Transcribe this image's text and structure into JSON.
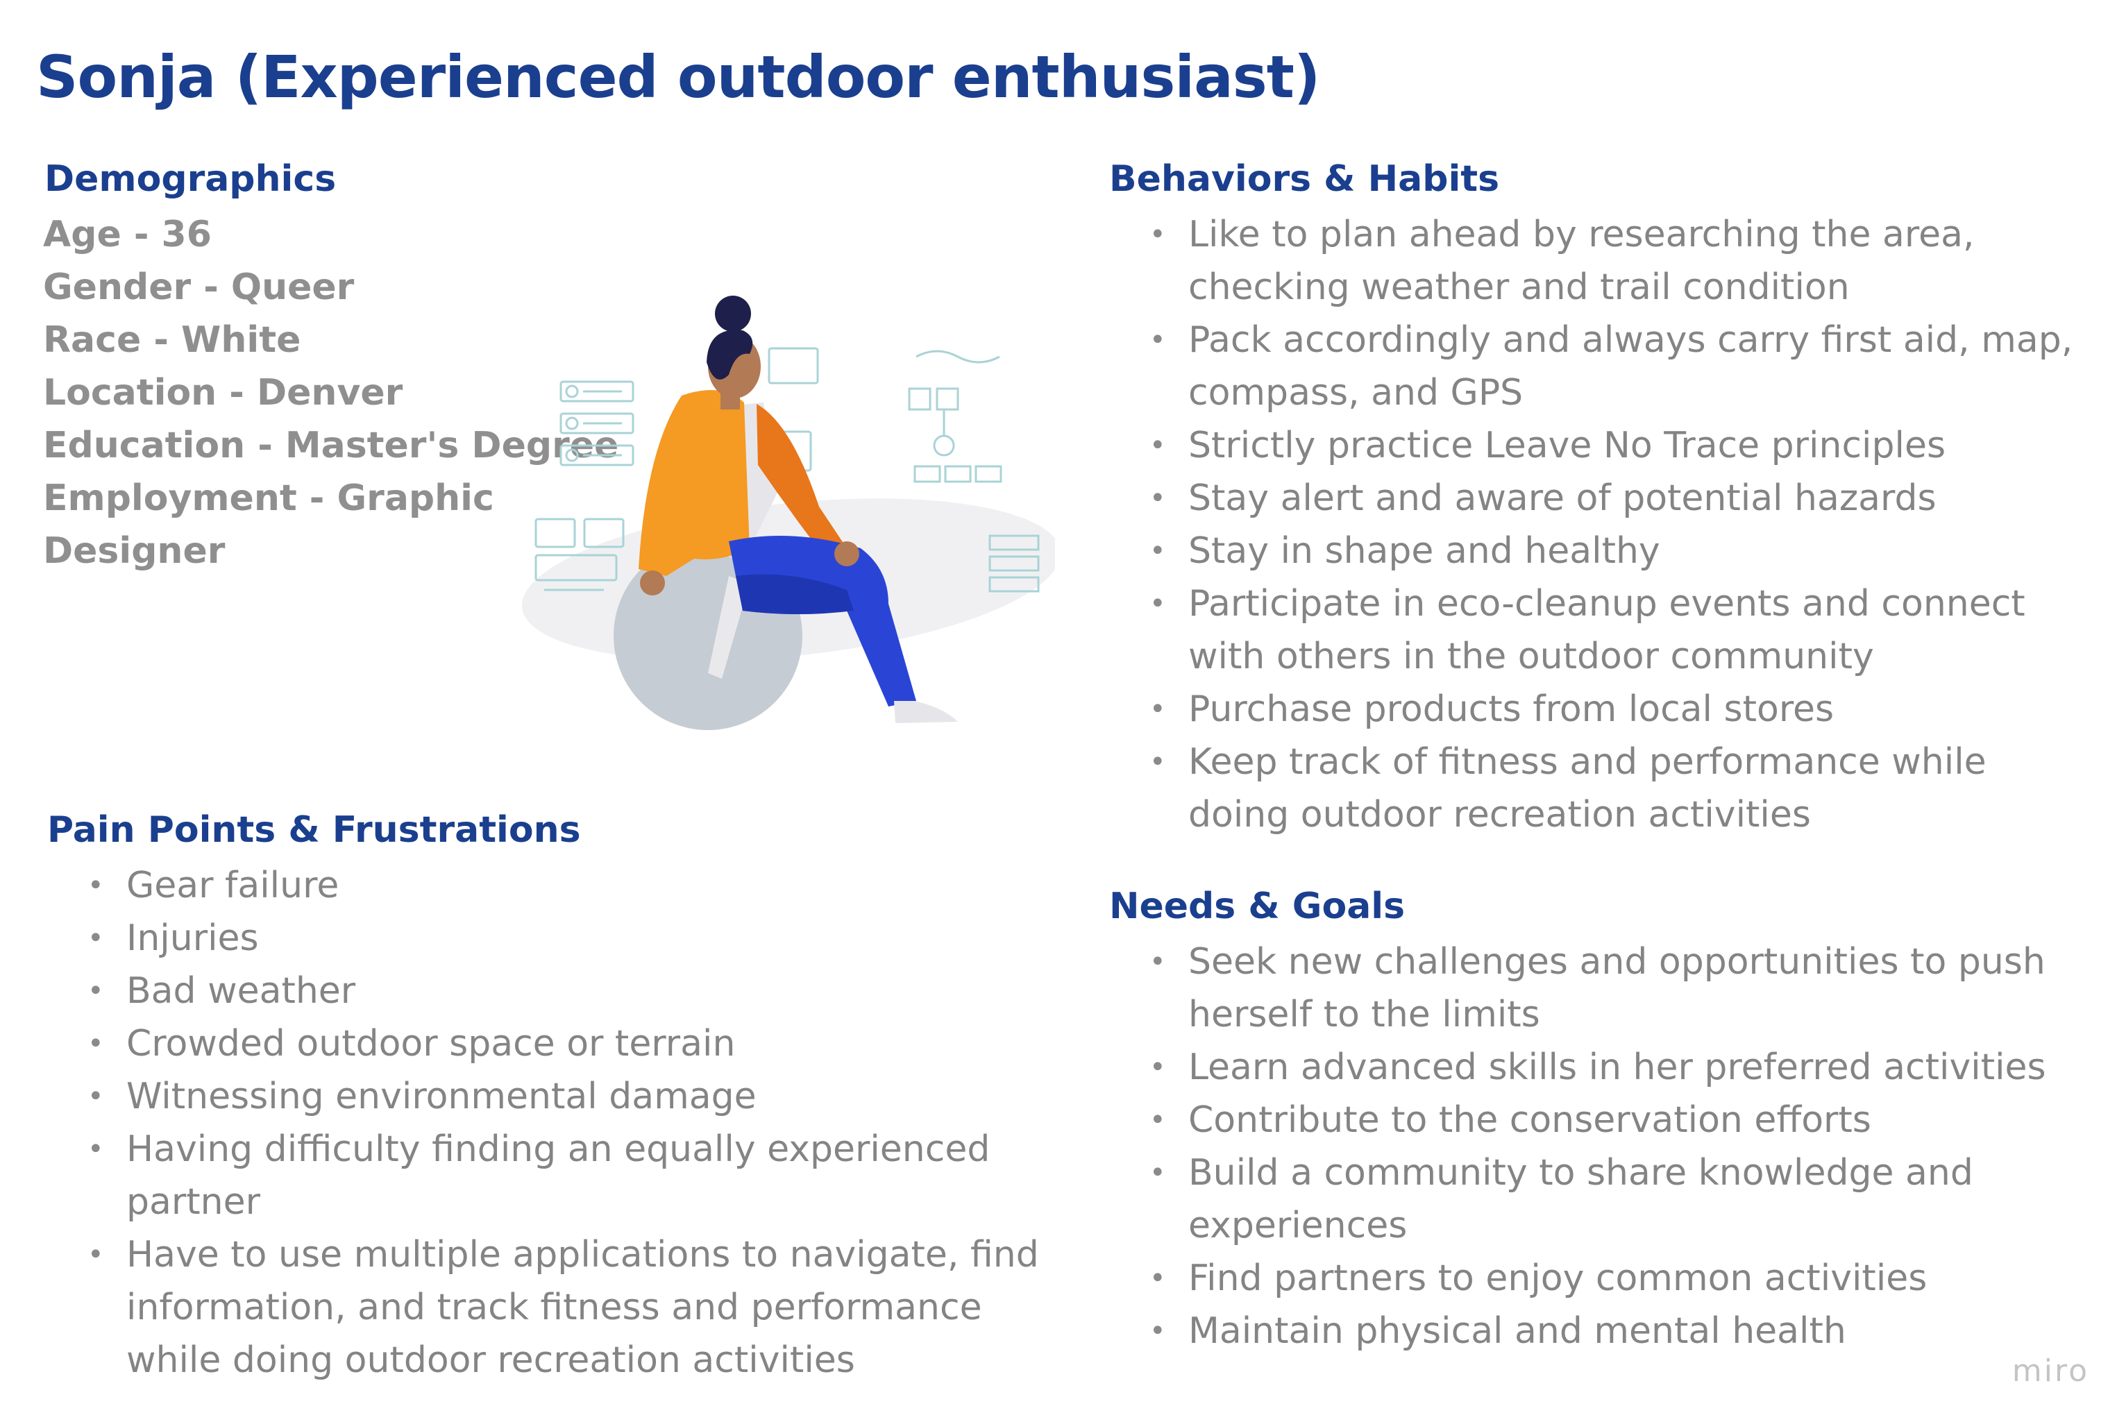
{
  "title": "Sonja (Experienced outdoor enthusiast)",
  "demographics": {
    "heading": "Demographics",
    "items": [
      "Age - 36",
      "Gender - Queer",
      "Race - White",
      "Location - Denver",
      "Education - Master's Degree",
      "Employment - Graphic",
      "Designer"
    ]
  },
  "behaviors": {
    "heading": "Behaviors & Habits",
    "items": [
      "Like to plan ahead by researching the area, checking weather and trail condition",
      "Pack accordingly and always carry first aid, map, compass, and GPS",
      "Strictly practice Leave No Trace principles",
      "Stay alert and aware of potential hazards",
      "Stay in shape and healthy",
      "Participate in eco-cleanup events and connect with others in the outdoor community",
      "Purchase products from local stores",
      "Keep track of fitness and performance while doing outdoor recreation activities"
    ]
  },
  "pain_points": {
    "heading": "Pain Points & Frustrations",
    "items": [
      "Gear failure",
      "Injuries",
      "Bad weather",
      "Crowded outdoor space or terrain",
      "Witnessing environmental damage",
      "Having difficulty finding an equally experienced partner",
      "Have to use multiple applications to navigate, find information, and track fitness and performance while doing outdoor recreation activities"
    ]
  },
  "needs": {
    "heading": "Needs & Goals",
    "items": [
      "Seek new challenges and opportunities to push herself to the limits",
      "Learn advanced skills in her preferred activities",
      "Contribute to the conservation efforts",
      "Build a community to share knowledge and experiences",
      "Find partners to enjoy common activities",
      "Maintain physical and mental health"
    ]
  },
  "watermark": "miro",
  "colors": {
    "heading": "#1b3f8f",
    "body_text": "#848484",
    "jacket": "#f59a23",
    "pants": "#2a45d6",
    "hair": "#1e1f4b",
    "skin": "#b27a55",
    "ball": "#c5ccd4"
  },
  "icons": {
    "bullet": "bullet-dot",
    "illustration": "person-sitting-on-ball-illustration"
  }
}
